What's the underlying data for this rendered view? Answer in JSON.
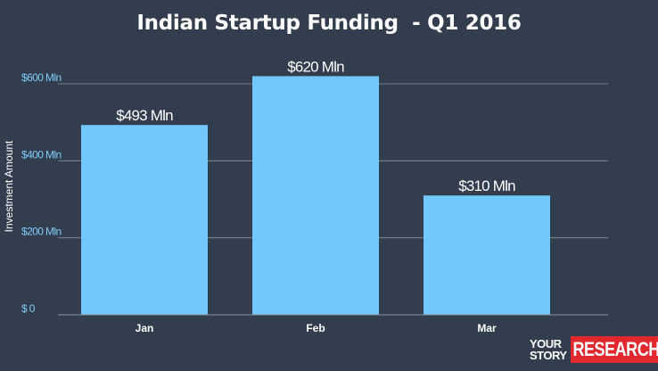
{
  "colors": {
    "background": "#323d4e",
    "bar": "#72c8fc",
    "gridline": "#8a93a0",
    "tick_text": "#7fcbf8",
    "text": "#ffffff",
    "logo_red": "#e0282e"
  },
  "branding": {
    "line1": "YOUR",
    "line2": "STORY",
    "box": "RESEARCH"
  },
  "chart_data": {
    "type": "bar",
    "title": "Indian Startup Funding  - Q1 2016",
    "xlabel": "",
    "ylabel": "Investment Amount",
    "categories": [
      "Jan",
      "Feb",
      "Mar"
    ],
    "values": [
      493,
      620,
      310
    ],
    "data_labels": [
      "$493 Mln",
      "$620 Mln",
      "$310 Mln"
    ],
    "ylim": [
      0,
      600
    ],
    "yticks": [
      0,
      200,
      400,
      600
    ],
    "ytick_labels": [
      "$ 0",
      "$200 Mln",
      "$400 Mln",
      "$600 Mln"
    ],
    "grid": true,
    "legend": "none"
  }
}
